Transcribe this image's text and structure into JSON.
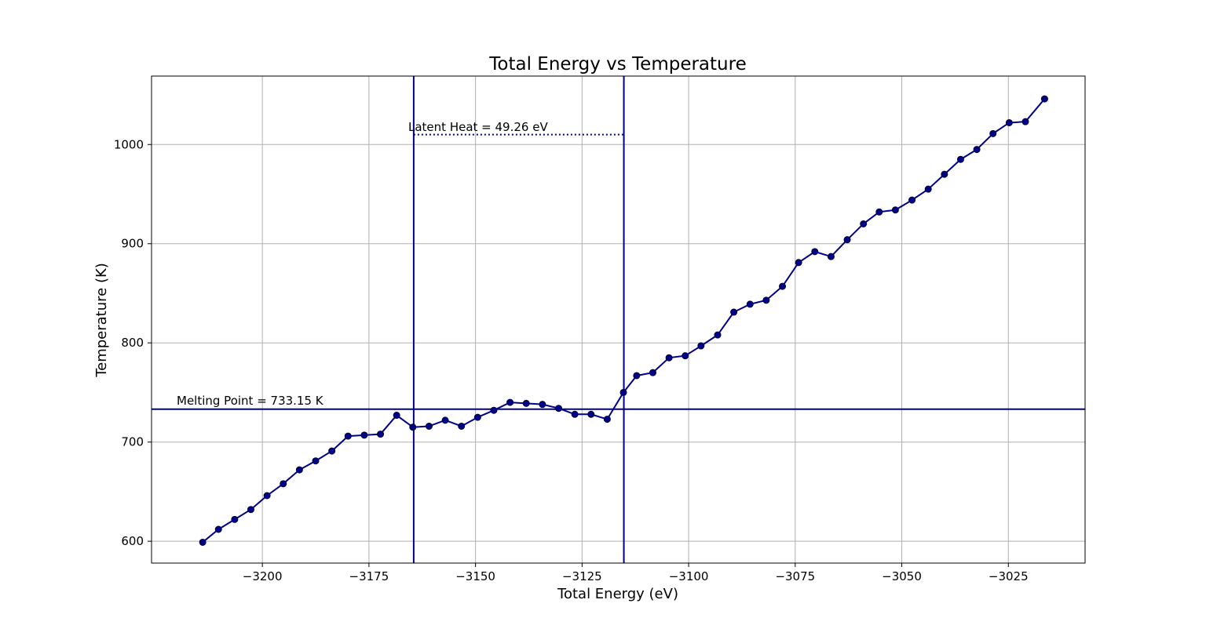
{
  "chart_data": {
    "type": "line",
    "title": "Total Energy vs Temperature",
    "xlabel": "Total Energy (eV)",
    "ylabel": "Temperature (K)",
    "xlim": [
      -3226,
      -3007
    ],
    "ylim": [
      578,
      1069
    ],
    "x_ticks": [
      -3200,
      -3175,
      -3150,
      -3125,
      -3100,
      -3075,
      -3050,
      -3025
    ],
    "x_tick_labels": [
      "−3200",
      "−3175",
      "−3150",
      "−3125",
      "−3100",
      "−3075",
      "−3050",
      "−3025"
    ],
    "y_ticks": [
      600,
      700,
      800,
      900,
      1000
    ],
    "y_tick_labels": [
      "600",
      "700",
      "800",
      "900",
      "1000"
    ],
    "grid": true,
    "line_color": "#00008b",
    "melting_point": {
      "value": 733.15,
      "label": "Melting Point = 733.15 K"
    },
    "phase_bounds": {
      "start": -3164.5,
      "end": -3115.2
    },
    "latent_heat": {
      "y": 1010,
      "label": "Latent Heat = 49.26 eV"
    },
    "series": [
      {
        "x": [
          -3214.0,
          -3210.3,
          -3206.5,
          -3202.7,
          -3198.9,
          -3195.1,
          -3191.3,
          -3187.5,
          -3183.7,
          -3179.9,
          -3176.1,
          -3172.3,
          -3168.5,
          -3164.7,
          -3160.9,
          -3157.1,
          -3153.3,
          -3149.5,
          -3145.7,
          -3141.9,
          -3138.1,
          -3134.3,
          -3130.5,
          -3126.7,
          -3122.9,
          -3119.1,
          -3115.3,
          -3112.2,
          -3108.4,
          -3104.6,
          -3100.8,
          -3097.1,
          -3093.2,
          -3089.4,
          -3085.6,
          -3081.8,
          -3078.0,
          -3074.2,
          -3070.4,
          -3066.6,
          -3062.8,
          -3059.0,
          -3055.3,
          -3051.5,
          -3047.6,
          -3043.8,
          -3040.0,
          -3036.2,
          -3032.4,
          -3028.6,
          -3024.8,
          -3021.0,
          -3016.5
        ],
        "y": [
          599,
          612,
          622,
          632,
          646,
          658,
          672,
          681,
          691,
          706,
          707,
          708,
          727,
          715,
          716,
          722,
          716,
          725,
          732,
          740,
          739,
          738,
          734,
          728,
          728,
          723,
          750,
          767,
          770,
          785,
          787,
          797,
          808,
          831,
          839,
          843,
          857,
          881,
          892,
          887,
          904,
          920,
          932,
          934,
          944,
          955,
          970,
          985,
          995,
          1011,
          1022,
          1023,
          1046
        ]
      }
    ]
  }
}
